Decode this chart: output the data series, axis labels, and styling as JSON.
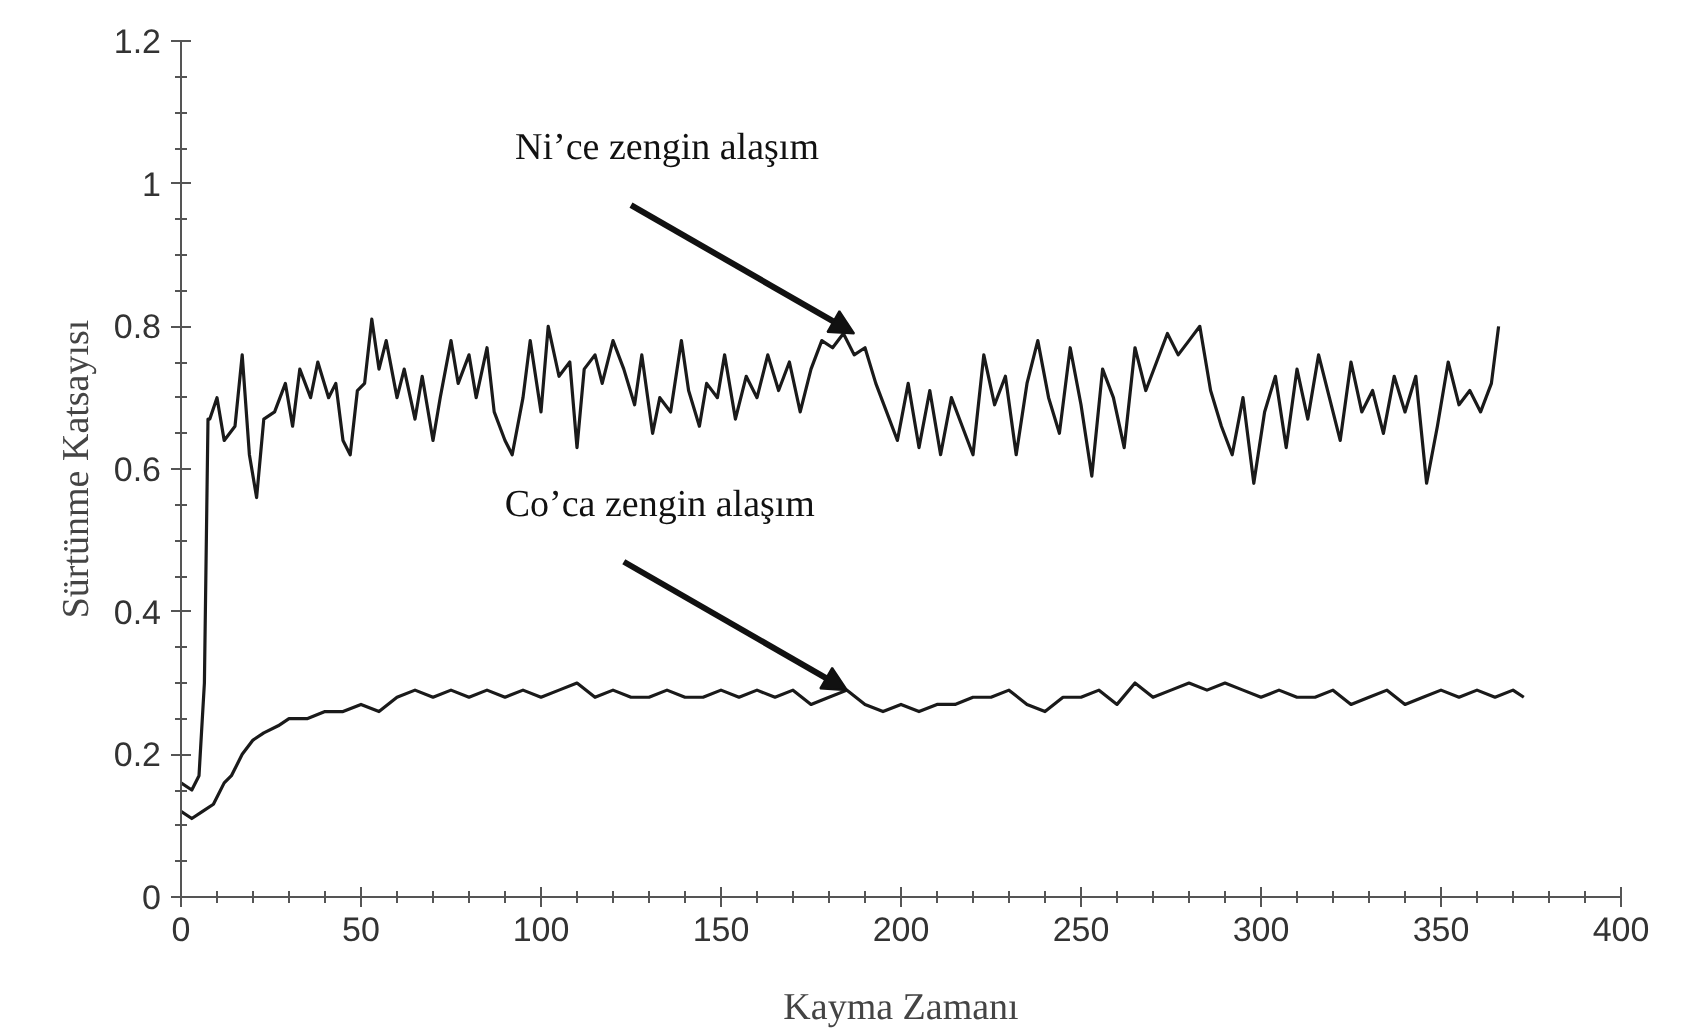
{
  "chart_data": {
    "type": "line",
    "xlabel": "Kayma Zamanı",
    "ylabel": "Sürtünme Katsayısı",
    "xlim": [
      0,
      400
    ],
    "ylim": [
      0,
      1.2
    ],
    "xticks": [
      0,
      50,
      100,
      150,
      200,
      250,
      300,
      350,
      400
    ],
    "yticks": [
      0,
      0.2,
      0.4,
      0.6,
      0.8,
      1.0,
      1.2
    ],
    "grid": false,
    "marker": "none",
    "line_style": "solid",
    "annotations": [
      {
        "text": "Ni’ce zengin alaşım",
        "x": 187,
        "y": 0.79
      },
      {
        "text": "Co’ca zengin alaşım",
        "x": 185,
        "y": 0.29
      }
    ],
    "series": [
      {
        "color": "#1a1a1a",
        "x": [
          0,
          3,
          5,
          6.5,
          7.5,
          8,
          10,
          12,
          15,
          17,
          19,
          21,
          23,
          26,
          29,
          31,
          33,
          36,
          38,
          41,
          43,
          45,
          47,
          49,
          51,
          53,
          55,
          57,
          60,
          62,
          65,
          67,
          70,
          72,
          75,
          77,
          80,
          82,
          85,
          87,
          90,
          92,
          95,
          97,
          100,
          102,
          105,
          108,
          110,
          112,
          115,
          117,
          120,
          123,
          126,
          128,
          131,
          133,
          136,
          139,
          141,
          144,
          146,
          149,
          151,
          154,
          157,
          160,
          163,
          166,
          169,
          172,
          175,
          178,
          181,
          184,
          187,
          190,
          193,
          196,
          199,
          202,
          205,
          208,
          211,
          214,
          217,
          220,
          223,
          226,
          229,
          232,
          235,
          238,
          241,
          244,
          247,
          250,
          253,
          256,
          259,
          262,
          265,
          268,
          271,
          274,
          277,
          280,
          283,
          286,
          289,
          292,
          295,
          298,
          301,
          304,
          307,
          310,
          313,
          316,
          319,
          322,
          325,
          328,
          331,
          334,
          337,
          340,
          343,
          346,
          349,
          352,
          355,
          358,
          361,
          364,
          366
        ],
        "values": [
          0.16,
          0.15,
          0.17,
          0.3,
          0.67,
          0.67,
          0.7,
          0.64,
          0.66,
          0.76,
          0.62,
          0.56,
          0.67,
          0.68,
          0.72,
          0.66,
          0.74,
          0.7,
          0.75,
          0.7,
          0.72,
          0.64,
          0.62,
          0.71,
          0.72,
          0.81,
          0.74,
          0.78,
          0.7,
          0.74,
          0.67,
          0.73,
          0.64,
          0.7,
          0.78,
          0.72,
          0.76,
          0.7,
          0.77,
          0.68,
          0.64,
          0.62,
          0.7,
          0.78,
          0.68,
          0.8,
          0.73,
          0.75,
          0.63,
          0.74,
          0.76,
          0.72,
          0.78,
          0.74,
          0.69,
          0.76,
          0.65,
          0.7,
          0.68,
          0.78,
          0.71,
          0.66,
          0.72,
          0.7,
          0.76,
          0.67,
          0.73,
          0.7,
          0.76,
          0.71,
          0.75,
          0.68,
          0.74,
          0.78,
          0.77,
          0.79,
          0.76,
          0.77,
          0.72,
          0.68,
          0.64,
          0.72,
          0.63,
          0.71,
          0.62,
          0.7,
          0.66,
          0.62,
          0.76,
          0.69,
          0.73,
          0.62,
          0.72,
          0.78,
          0.7,
          0.65,
          0.77,
          0.69,
          0.59,
          0.74,
          0.7,
          0.63,
          0.77,
          0.71,
          0.75,
          0.79,
          0.76,
          0.78,
          0.8,
          0.71,
          0.66,
          0.62,
          0.7,
          0.58,
          0.68,
          0.73,
          0.63,
          0.74,
          0.67,
          0.76,
          0.7,
          0.64,
          0.75,
          0.68,
          0.71,
          0.65,
          0.73,
          0.68,
          0.73,
          0.58,
          0.66,
          0.75,
          0.69,
          0.71,
          0.68,
          0.72,
          0.8
        ]
      },
      {
        "color": "#1a1a1a",
        "x": [
          0,
          3,
          6,
          9,
          12,
          14,
          17,
          20,
          23,
          27,
          30,
          35,
          40,
          45,
          50,
          55,
          60,
          65,
          70,
          75,
          80,
          85,
          90,
          95,
          100,
          105,
          110,
          115,
          120,
          125,
          130,
          135,
          140,
          145,
          150,
          155,
          160,
          165,
          170,
          175,
          180,
          185,
          190,
          195,
          200,
          205,
          210,
          215,
          220,
          225,
          230,
          235,
          240,
          245,
          250,
          255,
          260,
          265,
          270,
          275,
          280,
          285,
          290,
          295,
          300,
          305,
          310,
          315,
          320,
          325,
          330,
          335,
          340,
          345,
          350,
          355,
          360,
          365,
          370,
          373
        ],
        "values": [
          0.12,
          0.11,
          0.12,
          0.13,
          0.16,
          0.17,
          0.2,
          0.22,
          0.23,
          0.24,
          0.25,
          0.25,
          0.26,
          0.26,
          0.27,
          0.26,
          0.28,
          0.29,
          0.28,
          0.29,
          0.28,
          0.29,
          0.28,
          0.29,
          0.28,
          0.29,
          0.3,
          0.28,
          0.29,
          0.28,
          0.28,
          0.29,
          0.28,
          0.28,
          0.29,
          0.28,
          0.29,
          0.28,
          0.29,
          0.27,
          0.28,
          0.29,
          0.27,
          0.26,
          0.27,
          0.26,
          0.27,
          0.27,
          0.28,
          0.28,
          0.29,
          0.27,
          0.26,
          0.28,
          0.28,
          0.29,
          0.27,
          0.3,
          0.28,
          0.29,
          0.3,
          0.29,
          0.3,
          0.29,
          0.28,
          0.29,
          0.28,
          0.28,
          0.29,
          0.27,
          0.28,
          0.29,
          0.27,
          0.28,
          0.29,
          0.28,
          0.29,
          0.28,
          0.29,
          0.28
        ]
      }
    ]
  }
}
